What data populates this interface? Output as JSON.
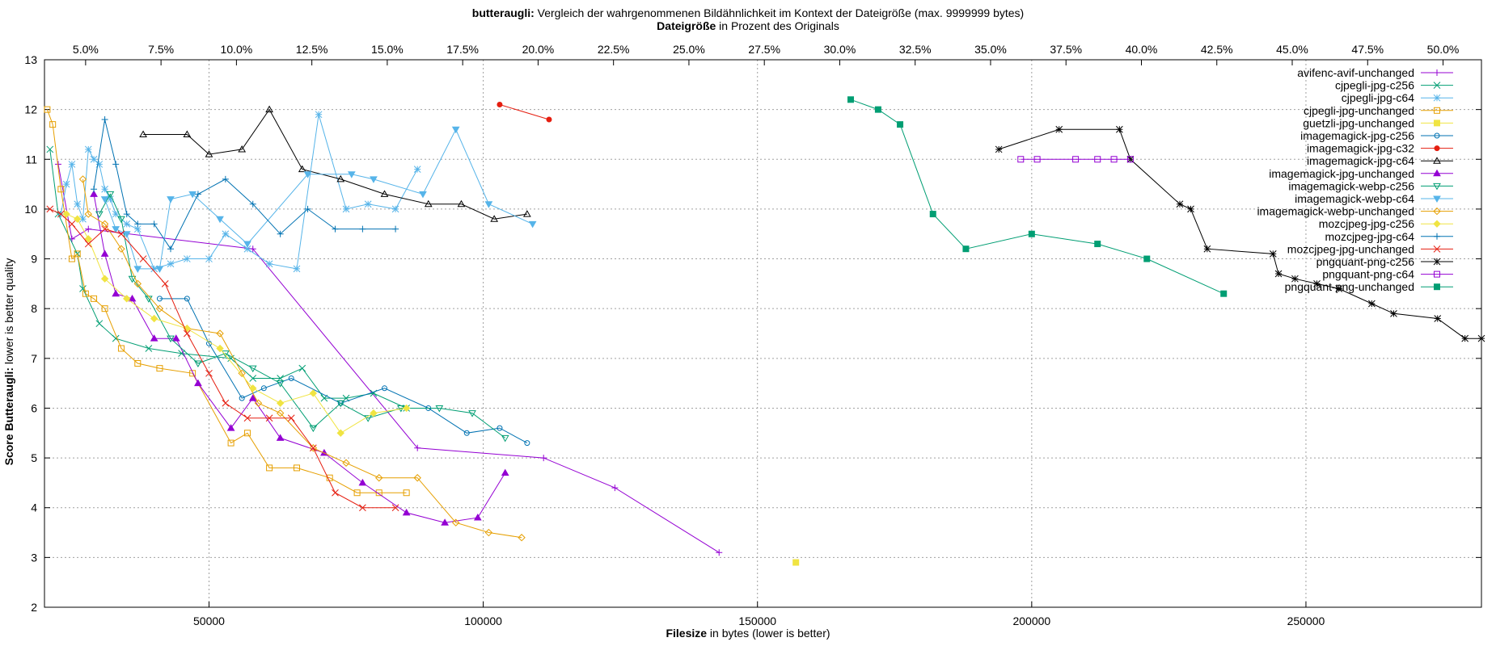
{
  "chart_data": {
    "type": "line",
    "title": {
      "bold": "butteraugli:",
      "rest": " Vergleich der wahrgenommenen Bildähnlichkeit im Kontext der Dateigröße (max. 9999999 bytes)"
    },
    "x2label": {
      "bold": "Dateigröße",
      "rest": " in Prozent des Originals"
    },
    "xlabel": {
      "bold": "Filesize",
      "rest": " in bytes (lower is better)"
    },
    "ylabel": {
      "bold": "Score Butteraugli:",
      "rest": " lower is better quality"
    },
    "xlim": [
      20000,
      282000
    ],
    "ylim": [
      2,
      13
    ],
    "x_ticks": [
      50000,
      100000,
      150000,
      200000,
      250000
    ],
    "y_ticks": [
      2,
      3,
      4,
      5,
      6,
      7,
      8,
      9,
      10,
      11,
      12,
      13
    ],
    "x2_ticks": [
      "5.0%",
      "7.5%",
      "10.0%",
      "12.5%",
      "15.0%",
      "17.5%",
      "20.0%",
      "22.5%",
      "25.0%",
      "27.5%",
      "30.0%",
      "32.5%",
      "35.0%",
      "37.5%",
      "40.0%",
      "42.5%",
      "45.0%",
      "47.5%",
      "50.0%"
    ],
    "x2_tick_bytes_per_percent": 5500,
    "grid": true,
    "legend_position": "top-right",
    "series": [
      {
        "name": "avifenc-avif-unchanged",
        "color": "#9400d3",
        "marker": "plus",
        "points": [
          [
            22500,
            10.9
          ],
          [
            25000,
            9.4
          ],
          [
            28000,
            9.6
          ],
          [
            58000,
            9.2
          ],
          [
            88000,
            5.2
          ],
          [
            111000,
            5.0
          ],
          [
            124000,
            4.4
          ],
          [
            143000,
            3.1
          ]
        ]
      },
      {
        "name": "cjpegli-jpg-c256",
        "color": "#009e73",
        "marker": "x",
        "points": [
          [
            21000,
            11.2
          ],
          [
            22500,
            9.9
          ],
          [
            26000,
            9.1
          ],
          [
            27000,
            8.4
          ],
          [
            30000,
            7.7
          ],
          [
            33000,
            7.4
          ],
          [
            39000,
            7.2
          ],
          [
            45000,
            7.1
          ],
          [
            54000,
            7.0
          ],
          [
            58000,
            6.6
          ],
          [
            63000,
            6.6
          ],
          [
            67000,
            6.8
          ],
          [
            71000,
            6.2
          ],
          [
            75000,
            6.2
          ],
          [
            80000,
            6.3
          ],
          [
            86000,
            6.0
          ]
        ]
      },
      {
        "name": "cjpegli-jpg-c64",
        "color": "#56b4e9",
        "marker": "asterisk",
        "points": [
          [
            23000,
            9.9
          ],
          [
            24000,
            10.5
          ],
          [
            25000,
            10.9
          ],
          [
            26000,
            10.1
          ],
          [
            27000,
            9.8
          ],
          [
            28000,
            11.2
          ],
          [
            29000,
            11.0
          ],
          [
            30000,
            10.9
          ],
          [
            31000,
            10.4
          ],
          [
            32000,
            10.2
          ],
          [
            33000,
            9.9
          ],
          [
            35000,
            9.7
          ],
          [
            37000,
            9.6
          ],
          [
            40000,
            8.8
          ],
          [
            43000,
            8.9
          ],
          [
            46000,
            9.0
          ],
          [
            50000,
            9.0
          ],
          [
            53000,
            9.5
          ],
          [
            57000,
            9.2
          ],
          [
            61000,
            8.9
          ],
          [
            66000,
            8.8
          ],
          [
            70000,
            11.9
          ],
          [
            75000,
            10.0
          ],
          [
            79000,
            10.1
          ],
          [
            84000,
            10.0
          ],
          [
            88000,
            10.8
          ]
        ]
      },
      {
        "name": "cjpegli-jpg-unchanged",
        "color": "#e69f00",
        "marker": "square",
        "points": [
          [
            20500,
            12.0
          ],
          [
            21500,
            11.7
          ],
          [
            23000,
            10.4
          ],
          [
            25000,
            9.0
          ],
          [
            26000,
            9.1
          ],
          [
            27500,
            8.3
          ],
          [
            29000,
            8.2
          ],
          [
            31000,
            8.0
          ],
          [
            34000,
            7.2
          ],
          [
            37000,
            6.9
          ],
          [
            41000,
            6.8
          ],
          [
            47000,
            6.7
          ],
          [
            54000,
            5.3
          ],
          [
            57000,
            5.5
          ],
          [
            61000,
            4.8
          ],
          [
            66000,
            4.8
          ],
          [
            72000,
            4.6
          ],
          [
            77000,
            4.3
          ],
          [
            81000,
            4.3
          ],
          [
            86000,
            4.3
          ]
        ]
      },
      {
        "name": "guetzli-jpg-unchanged",
        "color": "#f0e442",
        "marker": "filled-square",
        "points": [
          [
            157000,
            2.9
          ]
        ]
      },
      {
        "name": "imagemagick-jpg-c256",
        "color": "#0072b2",
        "marker": "circle",
        "points": [
          [
            41000,
            8.2
          ],
          [
            46000,
            8.2
          ],
          [
            50000,
            7.3
          ],
          [
            56000,
            6.2
          ],
          [
            60000,
            6.4
          ],
          [
            65000,
            6.6
          ],
          [
            74000,
            6.1
          ],
          [
            82000,
            6.4
          ],
          [
            90000,
            6.0
          ],
          [
            97000,
            5.5
          ],
          [
            103000,
            5.6
          ],
          [
            108000,
            5.3
          ]
        ]
      },
      {
        "name": "imagemagick-jpg-c32",
        "color": "#e51e10",
        "marker": "filled-circle",
        "points": [
          [
            103000,
            12.1
          ],
          [
            112000,
            11.8
          ]
        ]
      },
      {
        "name": "imagemagick-jpg-c64",
        "color": "#000000",
        "marker": "triangle",
        "points": [
          [
            38000,
            11.5
          ],
          [
            46000,
            11.5
          ],
          [
            50000,
            11.1
          ],
          [
            56000,
            11.2
          ],
          [
            61000,
            12.0
          ],
          [
            67000,
            10.8
          ],
          [
            74000,
            10.6
          ],
          [
            82000,
            10.3
          ],
          [
            90000,
            10.1
          ],
          [
            96000,
            10.1
          ],
          [
            102000,
            9.8
          ],
          [
            108000,
            9.9
          ]
        ]
      },
      {
        "name": "imagemagick-jpg-unchanged",
        "color": "#9400d3",
        "marker": "filled-triangle",
        "points": [
          [
            29000,
            10.3
          ],
          [
            31000,
            9.1
          ],
          [
            33000,
            8.3
          ],
          [
            36000,
            8.2
          ],
          [
            40000,
            7.4
          ],
          [
            44000,
            7.4
          ],
          [
            48000,
            6.5
          ],
          [
            54000,
            5.6
          ],
          [
            58000,
            6.2
          ],
          [
            63000,
            5.4
          ],
          [
            71000,
            5.1
          ],
          [
            78000,
            4.5
          ],
          [
            86000,
            3.9
          ],
          [
            93000,
            3.7
          ],
          [
            99000,
            3.8
          ],
          [
            104000,
            4.7
          ]
        ]
      },
      {
        "name": "imagemagick-webp-c256",
        "color": "#009e73",
        "marker": "triangle-down",
        "points": [
          [
            30000,
            9.9
          ],
          [
            32000,
            10.3
          ],
          [
            34000,
            9.8
          ],
          [
            36000,
            8.6
          ],
          [
            39000,
            8.2
          ],
          [
            43000,
            7.4
          ],
          [
            48000,
            6.9
          ],
          [
            53000,
            7.1
          ],
          [
            58000,
            6.8
          ],
          [
            63000,
            6.5
          ],
          [
            69000,
            5.6
          ],
          [
            74000,
            6.1
          ],
          [
            79000,
            5.8
          ],
          [
            85000,
            6.0
          ],
          [
            92000,
            6.0
          ],
          [
            98000,
            5.9
          ],
          [
            104000,
            5.4
          ]
        ]
      },
      {
        "name": "imagemagick-webp-c64",
        "color": "#56b4e9",
        "marker": "filled-triangle-down",
        "points": [
          [
            31000,
            10.2
          ],
          [
            33000,
            9.6
          ],
          [
            35000,
            9.5
          ],
          [
            37000,
            8.8
          ],
          [
            41000,
            8.8
          ],
          [
            43000,
            10.2
          ],
          [
            47000,
            10.3
          ],
          [
            52000,
            9.8
          ],
          [
            57000,
            9.3
          ],
          [
            68000,
            10.7
          ],
          [
            76000,
            10.7
          ],
          [
            80000,
            10.6
          ],
          [
            89000,
            10.3
          ],
          [
            95000,
            11.6
          ],
          [
            101000,
            10.1
          ],
          [
            109000,
            9.7
          ]
        ]
      },
      {
        "name": "imagemagick-webp-unchanged",
        "color": "#e69f00",
        "marker": "diamond",
        "points": [
          [
            27000,
            10.6
          ],
          [
            28000,
            9.9
          ],
          [
            31000,
            9.7
          ],
          [
            34000,
            9.2
          ],
          [
            37000,
            8.5
          ],
          [
            41000,
            8.0
          ],
          [
            46000,
            7.6
          ],
          [
            52000,
            7.5
          ],
          [
            56000,
            6.7
          ],
          [
            59000,
            6.1
          ],
          [
            63000,
            5.9
          ],
          [
            69000,
            5.2
          ],
          [
            75000,
            4.9
          ],
          [
            81000,
            4.6
          ],
          [
            88000,
            4.6
          ],
          [
            95000,
            3.7
          ],
          [
            101000,
            3.5
          ],
          [
            107000,
            3.4
          ]
        ]
      },
      {
        "name": "mozcjpeg-jpg-c256",
        "color": "#f0e442",
        "marker": "filled-diamond",
        "points": [
          [
            24000,
            9.9
          ],
          [
            26000,
            9.8
          ],
          [
            28000,
            9.4
          ],
          [
            31000,
            8.6
          ],
          [
            35000,
            8.2
          ],
          [
            40000,
            7.8
          ],
          [
            46000,
            7.6
          ],
          [
            52000,
            7.2
          ],
          [
            58000,
            6.4
          ],
          [
            63000,
            6.1
          ],
          [
            69000,
            6.3
          ],
          [
            74000,
            5.5
          ],
          [
            80000,
            5.9
          ],
          [
            86000,
            6.0
          ]
        ]
      },
      {
        "name": "mozcjpeg-jpg-c64",
        "color": "#0072b2",
        "marker": "plus",
        "points": [
          [
            29000,
            10.4
          ],
          [
            31000,
            11.8
          ],
          [
            33000,
            10.9
          ],
          [
            35000,
            9.9
          ],
          [
            37000,
            9.7
          ],
          [
            40000,
            9.7
          ],
          [
            43000,
            9.2
          ],
          [
            48000,
            10.3
          ],
          [
            53000,
            10.6
          ],
          [
            58000,
            10.1
          ],
          [
            63000,
            9.5
          ],
          [
            68000,
            10.0
          ],
          [
            73000,
            9.6
          ],
          [
            78000,
            9.6
          ],
          [
            84000,
            9.6
          ]
        ]
      },
      {
        "name": "mozcjpeg-jpg-unchanged",
        "color": "#e51e10",
        "marker": "x",
        "points": [
          [
            21000,
            10.0
          ],
          [
            23000,
            9.9
          ],
          [
            25000,
            9.7
          ],
          [
            28000,
            9.3
          ],
          [
            31000,
            9.6
          ],
          [
            34000,
            9.5
          ],
          [
            38000,
            9.0
          ],
          [
            42000,
            8.5
          ],
          [
            46000,
            7.5
          ],
          [
            50000,
            6.7
          ],
          [
            53000,
            6.1
          ],
          [
            57000,
            5.8
          ],
          [
            61000,
            5.8
          ],
          [
            65000,
            5.8
          ],
          [
            69000,
            5.2
          ],
          [
            73000,
            4.3
          ],
          [
            78000,
            4.0
          ],
          [
            84000,
            4.0
          ]
        ]
      },
      {
        "name": "pngquant-png-c256",
        "color": "#000000",
        "marker": "asterisk",
        "points": [
          [
            194000,
            11.2
          ],
          [
            205000,
            11.6
          ],
          [
            216000,
            11.6
          ],
          [
            218000,
            11.0
          ],
          [
            227000,
            10.1
          ],
          [
            229000,
            10.0
          ],
          [
            232000,
            9.2
          ],
          [
            244000,
            9.1
          ],
          [
            245000,
            8.7
          ],
          [
            248000,
            8.6
          ],
          [
            252000,
            8.5
          ],
          [
            256000,
            8.4
          ],
          [
            262000,
            8.1
          ],
          [
            266000,
            7.9
          ],
          [
            274000,
            7.8
          ],
          [
            279000,
            7.4
          ],
          [
            282000,
            7.4
          ]
        ]
      },
      {
        "name": "pngquant-png-c64",
        "color": "#9400d3",
        "marker": "square",
        "points": [
          [
            198000,
            11.0
          ],
          [
            201000,
            11.0
          ],
          [
            208000,
            11.0
          ],
          [
            212000,
            11.0
          ],
          [
            215000,
            11.0
          ],
          [
            218000,
            11.0
          ]
        ]
      },
      {
        "name": "pngquant-png-unchanged",
        "color": "#009e73",
        "marker": "filled-square",
        "points": [
          [
            167000,
            12.2
          ],
          [
            172000,
            12.0
          ],
          [
            176000,
            11.7
          ],
          [
            182000,
            9.9
          ],
          [
            188000,
            9.2
          ],
          [
            200000,
            9.5
          ],
          [
            212000,
            9.3
          ],
          [
            221000,
            9.0
          ],
          [
            235000,
            8.3
          ]
        ]
      }
    ]
  }
}
